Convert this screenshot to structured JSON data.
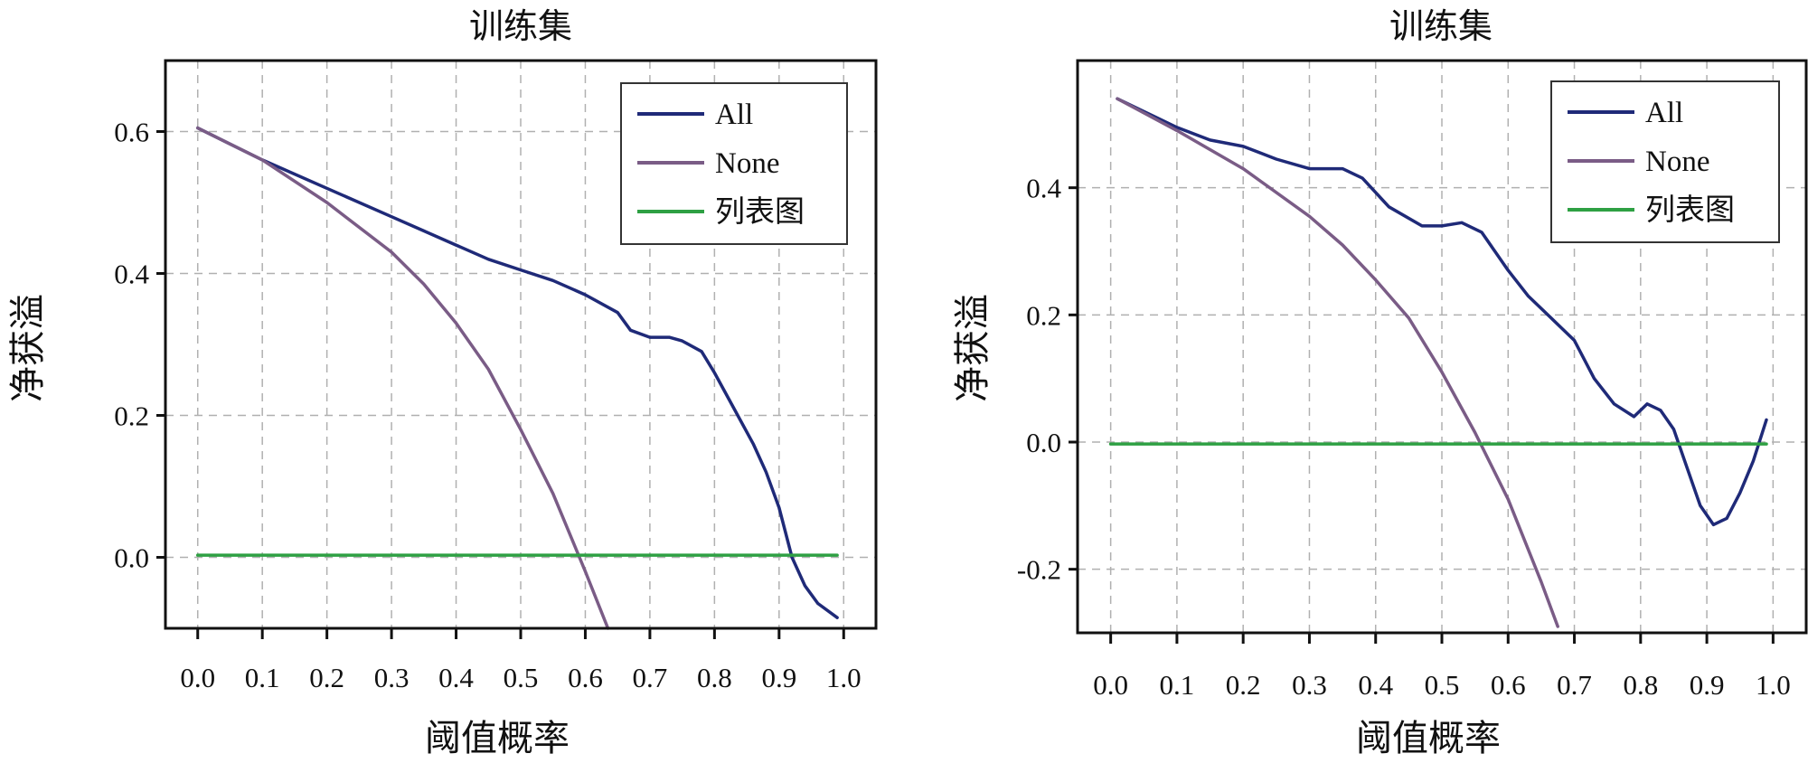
{
  "chart_data": [
    {
      "type": "line",
      "title": "训练集",
      "xlabel": "阈值概率",
      "ylabel": "净获溢",
      "xlim": [
        -0.05,
        1.05
      ],
      "ylim": [
        -0.1,
        0.7
      ],
      "xticks": [
        "0.0",
        "0.1",
        "0.2",
        "0.3",
        "0.4",
        "0.5",
        "0.6",
        "0.7",
        "0.8",
        "0.9",
        "1.0"
      ],
      "yticks": [
        "0.0",
        "0.2",
        "0.4",
        "0.6"
      ],
      "grid": true,
      "legend_position": "top-right",
      "series": [
        {
          "name": "All",
          "color": "#1f2a78",
          "x": [
            0.0,
            0.1,
            0.2,
            0.3,
            0.35,
            0.4,
            0.45,
            0.5,
            0.55,
            0.6,
            0.65,
            0.67,
            0.7,
            0.73,
            0.75,
            0.78,
            0.8,
            0.83,
            0.86,
            0.88,
            0.9,
            0.92,
            0.94,
            0.96,
            0.99
          ],
          "y": [
            0.605,
            0.56,
            0.52,
            0.48,
            0.46,
            0.44,
            0.42,
            0.405,
            0.39,
            0.37,
            0.345,
            0.32,
            0.31,
            0.31,
            0.305,
            0.29,
            0.26,
            0.21,
            0.16,
            0.12,
            0.07,
            0.0,
            -0.04,
            -0.065,
            -0.085
          ]
        },
        {
          "name": "None",
          "color": "#7a5c86",
          "x": [
            0.0,
            0.1,
            0.2,
            0.3,
            0.35,
            0.4,
            0.45,
            0.5,
            0.55,
            0.6,
            0.635
          ],
          "y": [
            0.605,
            0.56,
            0.5,
            0.43,
            0.385,
            0.33,
            0.265,
            0.18,
            0.09,
            -0.02,
            -0.1
          ]
        },
        {
          "name": "列表图",
          "color": "#2ea043",
          "x": [
            0.0,
            0.99
          ],
          "y": [
            0.003,
            0.003
          ]
        }
      ]
    },
    {
      "type": "line",
      "title": "训练集",
      "xlabel": "阈值概率",
      "ylabel": "净获溢",
      "xlim": [
        -0.05,
        1.05
      ],
      "ylim": [
        -0.3,
        0.6
      ],
      "xticks": [
        "0.0",
        "0.1",
        "0.2",
        "0.3",
        "0.4",
        "0.5",
        "0.6",
        "0.7",
        "0.8",
        "0.9",
        "1.0"
      ],
      "yticks": [
        "-0.2",
        "0.0",
        "0.2",
        "0.4"
      ],
      "grid": true,
      "legend_position": "top-right",
      "series": [
        {
          "name": "All",
          "color": "#1f2a78",
          "x": [
            0.01,
            0.05,
            0.1,
            0.15,
            0.2,
            0.25,
            0.3,
            0.35,
            0.38,
            0.42,
            0.47,
            0.5,
            0.53,
            0.56,
            0.6,
            0.63,
            0.66,
            0.7,
            0.73,
            0.76,
            0.79,
            0.81,
            0.83,
            0.85,
            0.87,
            0.89,
            0.91,
            0.93,
            0.95,
            0.97,
            0.99
          ],
          "y": [
            0.54,
            0.52,
            0.495,
            0.475,
            0.465,
            0.445,
            0.43,
            0.43,
            0.415,
            0.37,
            0.34,
            0.34,
            0.345,
            0.33,
            0.27,
            0.23,
            0.2,
            0.16,
            0.1,
            0.06,
            0.04,
            0.06,
            0.05,
            0.02,
            -0.04,
            -0.1,
            -0.13,
            -0.12,
            -0.08,
            -0.03,
            0.035
          ]
        },
        {
          "name": "None",
          "color": "#7a5c86",
          "x": [
            0.01,
            0.1,
            0.2,
            0.3,
            0.35,
            0.4,
            0.45,
            0.5,
            0.55,
            0.6,
            0.65,
            0.675
          ],
          "y": [
            0.54,
            0.49,
            0.43,
            0.355,
            0.31,
            0.255,
            0.195,
            0.11,
            0.015,
            -0.09,
            -0.22,
            -0.29
          ]
        },
        {
          "name": "列表图",
          "color": "#2ea043",
          "x": [
            0.0,
            0.99
          ],
          "y": [
            -0.003,
            -0.003
          ]
        }
      ]
    }
  ]
}
